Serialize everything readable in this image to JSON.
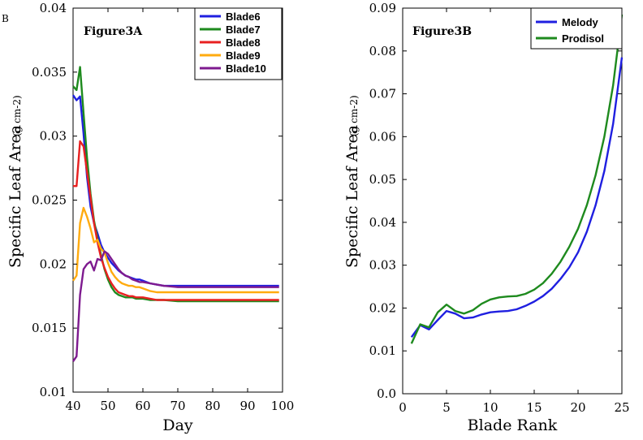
{
  "panel_letter": "B",
  "chart_data": [
    {
      "type": "line",
      "title": "Figure3A",
      "xlabel": "Day",
      "ylabel": "Specific Leaf Area",
      "ylabel_unit": "(g cm-2)",
      "xlim": [
        40,
        100
      ],
      "ylim": [
        0.01,
        0.04
      ],
      "xticks": [
        "40",
        "50",
        "60",
        "70",
        "80",
        "90",
        "100"
      ],
      "yticks": [
        "0.01",
        "0.015",
        "0.02",
        "0.025",
        "0.03",
        "0.035",
        "0.04"
      ],
      "legend_position": "top-right",
      "x": [
        40,
        41,
        42,
        43,
        44,
        45,
        46,
        47,
        48,
        49,
        50,
        51,
        52,
        53,
        54,
        55,
        56,
        57,
        58,
        59,
        60,
        62,
        64,
        66,
        70,
        75,
        80,
        85,
        90,
        95,
        99
      ],
      "series": [
        {
          "name": "Blade6",
          "color": "#1f1fe0",
          "values": [
            0.0332,
            0.0328,
            0.0331,
            0.0302,
            0.0268,
            0.0245,
            0.0232,
            0.0224,
            0.0215,
            0.0209,
            0.0205,
            0.0201,
            0.0198,
            0.0195,
            0.0193,
            0.0191,
            0.019,
            0.0189,
            0.0188,
            0.0188,
            0.0187,
            0.0185,
            0.0184,
            0.0183,
            0.0183,
            0.0183,
            0.0183,
            0.0183,
            0.0183,
            0.0183,
            0.0183
          ]
        },
        {
          "name": "Blade7",
          "color": "#1e8a1e",
          "values": [
            0.0339,
            0.0336,
            0.0354,
            0.0318,
            0.0283,
            0.0255,
            0.0234,
            0.022,
            0.0207,
            0.0196,
            0.0188,
            0.0182,
            0.0178,
            0.0176,
            0.0175,
            0.0174,
            0.0174,
            0.0174,
            0.0173,
            0.0173,
            0.0173,
            0.0172,
            0.0172,
            0.0172,
            0.0171,
            0.0171,
            0.0171,
            0.0171,
            0.0171,
            0.0171,
            0.0171
          ]
        },
        {
          "name": "Blade8",
          "color": "#e82020",
          "values": [
            0.0261,
            0.0261,
            0.0296,
            0.0292,
            0.0272,
            0.0252,
            0.0232,
            0.0217,
            0.0205,
            0.0197,
            0.019,
            0.0185,
            0.0181,
            0.0178,
            0.0177,
            0.0176,
            0.0175,
            0.0175,
            0.0174,
            0.0174,
            0.0174,
            0.0173,
            0.0172,
            0.0172,
            0.0172,
            0.0172,
            0.0172,
            0.0172,
            0.0172,
            0.0172,
            0.0172
          ]
        },
        {
          "name": "Blade9",
          "color": "#ffab0f",
          "values": [
            0.0187,
            0.0191,
            0.0232,
            0.0244,
            0.0237,
            0.0228,
            0.0217,
            0.0219,
            0.0212,
            0.0209,
            0.0201,
            0.0194,
            0.019,
            0.0187,
            0.0185,
            0.0184,
            0.0183,
            0.0183,
            0.0182,
            0.0182,
            0.0181,
            0.0179,
            0.0178,
            0.0178,
            0.0178,
            0.0178,
            0.0178,
            0.0178,
            0.0178,
            0.0178,
            0.0178
          ]
        },
        {
          "name": "Blade10",
          "color": "#7e1a8f",
          "values": [
            0.0124,
            0.0128,
            0.0176,
            0.0196,
            0.02,
            0.0202,
            0.0195,
            0.0204,
            0.0203,
            0.021,
            0.0208,
            0.0204,
            0.02,
            0.0196,
            0.0193,
            0.0191,
            0.019,
            0.0188,
            0.0187,
            0.0186,
            0.0186,
            0.0185,
            0.0184,
            0.0183,
            0.0182,
            0.0182,
            0.0182,
            0.0182,
            0.0182,
            0.0182,
            0.0182
          ]
        }
      ]
    },
    {
      "type": "line",
      "title": "Figure3B",
      "xlabel": "Blade Rank",
      "ylabel": "Specific Leaf Area",
      "ylabel_unit": "(g cm-2)",
      "xlim": [
        0,
        25
      ],
      "ylim": [
        0.0,
        0.09
      ],
      "xticks": [
        "0",
        "5",
        "10",
        "15",
        "20",
        "25"
      ],
      "yticks": [
        "0.0",
        "0.01",
        "0.02",
        "0.03",
        "0.04",
        "0.05",
        "0.06",
        "0.07",
        "0.08",
        "0.09"
      ],
      "legend_position": "top-right",
      "x": [
        1,
        2,
        3,
        4,
        5,
        6,
        7,
        8,
        9,
        10,
        11,
        12,
        13,
        14,
        15,
        16,
        17,
        18,
        19,
        20,
        21,
        22,
        23,
        24,
        25
      ],
      "series": [
        {
          "name": "Melody",
          "color": "#1f1fe0",
          "values": [
            0.0132,
            0.016,
            0.015,
            0.0172,
            0.0193,
            0.0187,
            0.0176,
            0.0178,
            0.0185,
            0.019,
            0.0192,
            0.0193,
            0.0197,
            0.0205,
            0.0215,
            0.0228,
            0.0245,
            0.0268,
            0.0295,
            0.033,
            0.0378,
            0.044,
            0.052,
            0.063,
            0.0785
          ]
        },
        {
          "name": "Prodisol",
          "color": "#1e8a1e",
          "values": [
            0.0117,
            0.0162,
            0.0155,
            0.019,
            0.0208,
            0.0193,
            0.0187,
            0.0195,
            0.021,
            0.022,
            0.0225,
            0.0227,
            0.0228,
            0.0233,
            0.0243,
            0.0258,
            0.028,
            0.0308,
            0.0343,
            0.0385,
            0.044,
            0.051,
            0.06,
            0.072,
            0.0885
          ]
        }
      ]
    }
  ]
}
